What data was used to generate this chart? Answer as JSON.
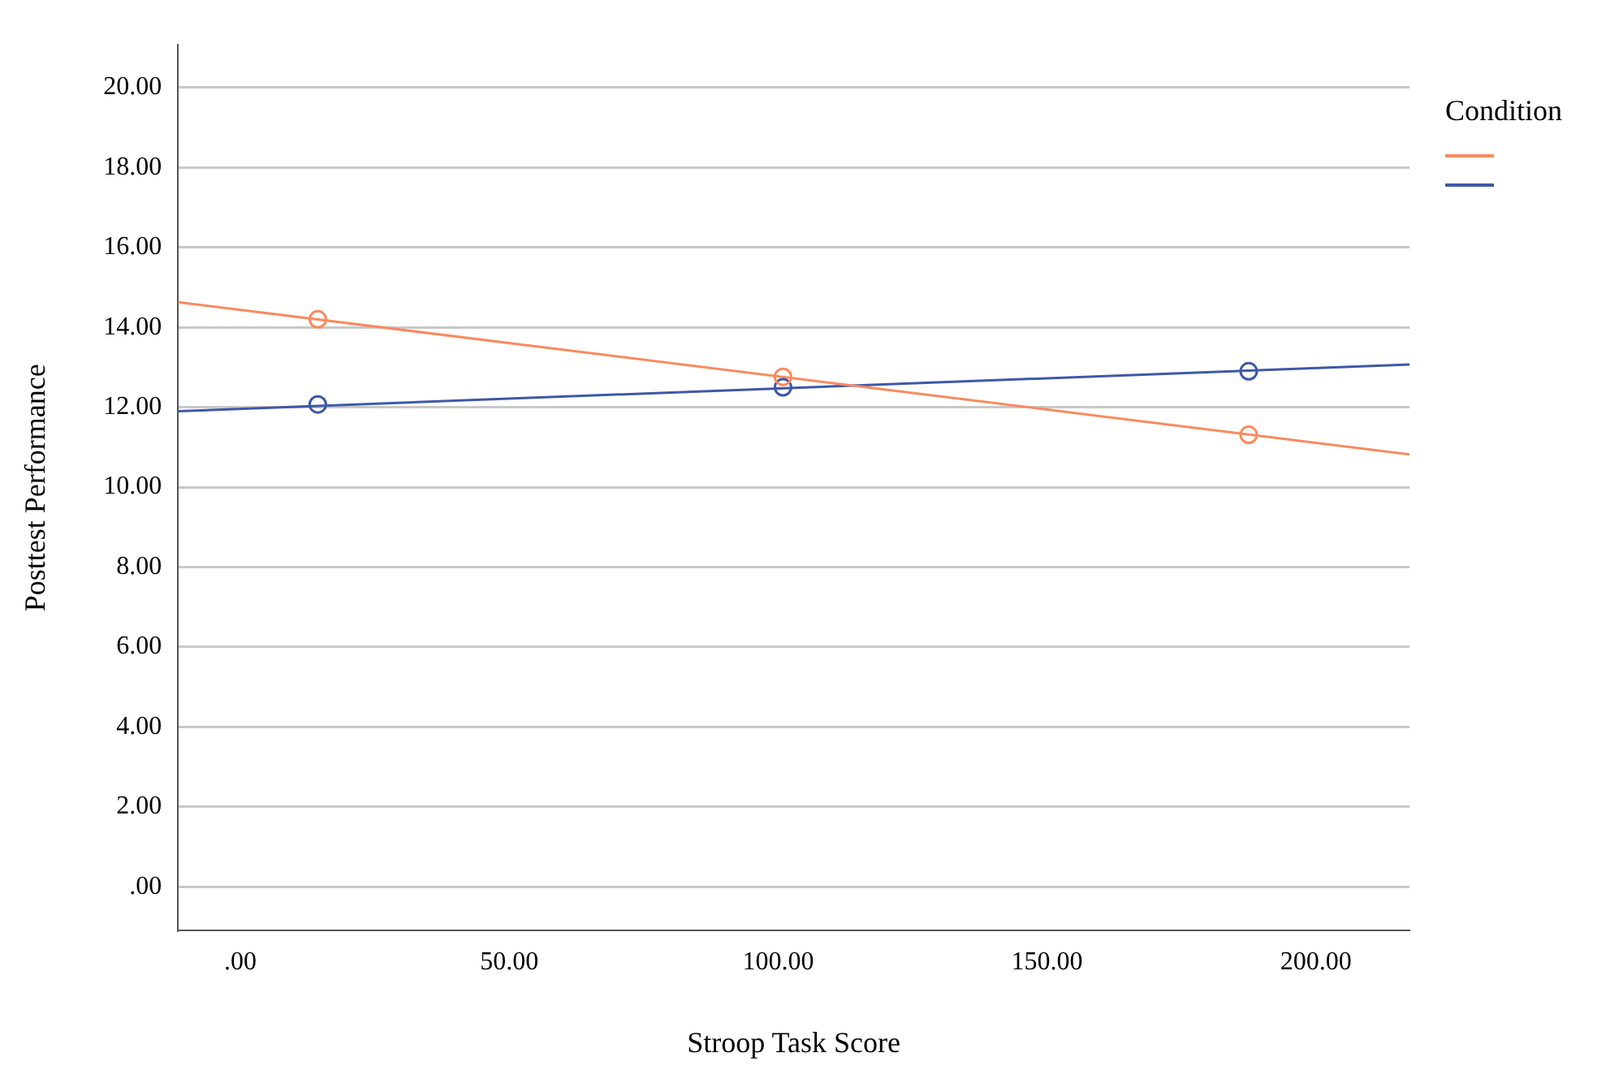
{
  "chart_data": {
    "type": "scatter",
    "xlabel": "Stroop Task Score",
    "ylabel": "Posttest Performance",
    "legend_title": "Condition",
    "grid": "y",
    "marker": "circle",
    "xlim": [
      -11.6,
      217.4
    ],
    "ylim": [
      -1.1,
      21.07
    ],
    "xticks": [
      {
        "value": 0,
        "label": ".00"
      },
      {
        "value": 50,
        "label": "50.00"
      },
      {
        "value": 100,
        "label": "100.00"
      },
      {
        "value": 150,
        "label": "150.00"
      },
      {
        "value": 200,
        "label": "200.00"
      }
    ],
    "yticks": [
      {
        "value": 0,
        "label": ".00"
      },
      {
        "value": 2,
        "label": "2.00"
      },
      {
        "value": 4,
        "label": "4.00"
      },
      {
        "value": 6,
        "label": "6.00"
      },
      {
        "value": 8,
        "label": "8.00"
      },
      {
        "value": 10,
        "label": "10.00"
      },
      {
        "value": 12,
        "label": "12.00"
      },
      {
        "value": 14,
        "label": "14.00"
      },
      {
        "value": 16,
        "label": "16.00"
      },
      {
        "value": 18,
        "label": "18.00"
      },
      {
        "value": 20,
        "label": "20.00"
      }
    ],
    "series": [
      {
        "type": "scatter",
        "color": "#f98a5e",
        "x": [
          14.4,
          100.9,
          187.5
        ],
        "values": [
          14.2,
          12.76,
          11.31
        ]
      },
      {
        "type": "scatter",
        "color": "#3e58a8",
        "x": [
          14.4,
          100.9,
          187.5
        ],
        "values": [
          12.07,
          12.5,
          12.9
        ]
      },
      {
        "type": "line",
        "marker": "none",
        "color": "#f98a5e",
        "x": [
          -11.6,
          217.4
        ],
        "values": [
          14.63,
          10.82
        ]
      },
      {
        "type": "line",
        "marker": "none",
        "color": "#3e58a8",
        "x": [
          -11.6,
          217.4
        ],
        "values": [
          11.9,
          13.07
        ]
      }
    ]
  }
}
